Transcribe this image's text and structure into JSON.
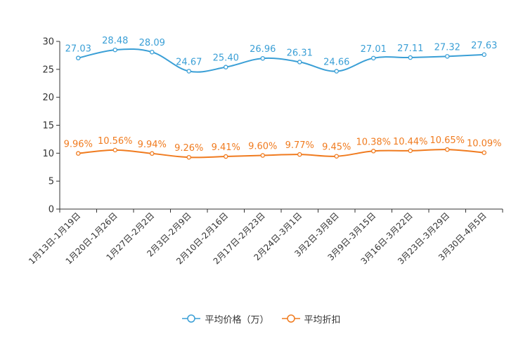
{
  "chart_data": {
    "type": "line",
    "title": "",
    "xlabel": "",
    "ylabel": "",
    "ylim": [
      0,
      30
    ],
    "yticks": [
      0,
      5,
      10,
      15,
      20,
      25,
      30
    ],
    "grid": false,
    "legend_position": "bottom-center",
    "categories": [
      "1月13日-1月19日",
      "1月20日-1月26日",
      "1月27日-2月2日",
      "2月3日-2月9日",
      "2月10日-2月16日",
      "2月17日-2月23日",
      "2月24日-3月1日",
      "3月2日-3月8日",
      "3月9日-3月15日",
      "3月16日-3月22日",
      "3月23日-3月29日",
      "3月30日-4月5日"
    ],
    "series": [
      {
        "name": "平均价格（万）",
        "color": "#3a9fd6",
        "values": [
          27.03,
          28.48,
          28.09,
          24.67,
          25.4,
          26.96,
          26.31,
          24.66,
          27.01,
          27.11,
          27.32,
          27.63
        ],
        "labels": [
          "27.03",
          "28.48",
          "28.09",
          "24.67",
          "25.40",
          "26.96",
          "26.31",
          "24.66",
          "27.01",
          "27.11",
          "27.32",
          "27.63"
        ]
      },
      {
        "name": "平均折扣",
        "color": "#f07b1f",
        "values": [
          9.96,
          10.56,
          9.94,
          9.26,
          9.41,
          9.6,
          9.77,
          9.45,
          10.38,
          10.44,
          10.65,
          10.09
        ],
        "labels": [
          "9.96%",
          "10.56%",
          "9.94%",
          "9.26%",
          "9.41%",
          "9.60%",
          "9.77%",
          "9.45%",
          "10.38%",
          "10.44%",
          "10.65%",
          "10.09%"
        ]
      }
    ]
  }
}
